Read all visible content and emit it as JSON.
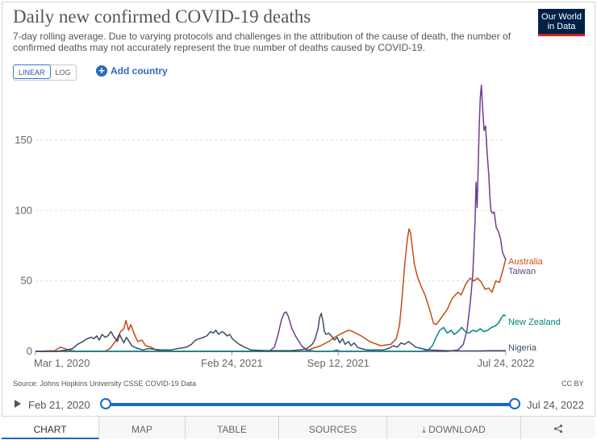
{
  "header": {
    "title": "Daily new confirmed COVID-19 deaths",
    "subtitle": "7-day rolling average. Due to varying protocols and challenges in the attribution of the cause of death, the number of confirmed deaths may not accurately represent the true number of deaths caused by COVID-19.",
    "logo_line1": "Our World",
    "logo_line2": "in Data"
  },
  "controls": {
    "linear_label": "LINEAR",
    "log_label": "LOG",
    "add_country_label": "Add country"
  },
  "footer": {
    "source": "Source: Johns Hopkins University CSSE COVID-19 Data",
    "license": "CC BY"
  },
  "timeline": {
    "start_label": "Feb 21, 2020",
    "end_label": "Jul 24, 2022"
  },
  "tabs": [
    "CHART",
    "MAP",
    "TABLE",
    "SOURCES",
    "DOWNLOAD"
  ],
  "icons": {
    "play": "play-icon",
    "share": "share-icon",
    "download": "download-icon",
    "add": "plus-circle-icon"
  },
  "colors": {
    "accent": "#1867d0",
    "grid": "#dddddd",
    "axis_text": "#666666"
  },
  "chart_data": {
    "type": "line",
    "x_scale": "time",
    "x_ticks": [
      "Mar 1, 2020",
      "Feb 24, 2021",
      "Sep 12, 2021",
      "Jul 24, 2022"
    ],
    "y_ticks": [
      0,
      50,
      100,
      150
    ],
    "ylim": [
      0,
      190
    ],
    "xlim": [
      "2020-02-21",
      "2022-07-24"
    ],
    "grid": true,
    "legend": "line-end labels",
    "series": [
      {
        "name": "Australia",
        "color": "#c64b14",
        "points": [
          [
            "2020-02-21",
            0
          ],
          [
            "2020-03-28",
            0.5
          ],
          [
            "2020-04-08",
            3
          ],
          [
            "2020-04-20",
            1.5
          ],
          [
            "2020-05-05",
            0
          ],
          [
            "2020-06-30",
            0
          ],
          [
            "2020-07-10",
            2
          ],
          [
            "2020-07-22",
            8
          ],
          [
            "2020-07-30",
            14
          ],
          [
            "2020-08-05",
            16
          ],
          [
            "2020-08-09",
            22
          ],
          [
            "2020-08-14",
            15
          ],
          [
            "2020-08-18",
            19
          ],
          [
            "2020-08-24",
            13
          ],
          [
            "2020-08-31",
            7
          ],
          [
            "2020-09-08",
            8
          ],
          [
            "2020-09-15",
            4
          ],
          [
            "2020-09-25",
            3
          ],
          [
            "2020-10-05",
            1
          ],
          [
            "2020-10-20",
            0
          ],
          [
            "2021-07-01",
            0
          ],
          [
            "2021-07-15",
            0.5
          ],
          [
            "2021-07-25",
            2
          ],
          [
            "2021-08-10",
            4
          ],
          [
            "2021-08-25",
            7
          ],
          [
            "2021-09-05",
            10
          ],
          [
            "2021-09-20",
            13
          ],
          [
            "2021-10-01",
            15
          ],
          [
            "2021-10-10",
            14
          ],
          [
            "2021-10-25",
            11
          ],
          [
            "2021-11-10",
            7
          ],
          [
            "2021-12-01",
            4
          ],
          [
            "2021-12-20",
            5
          ],
          [
            "2021-12-30",
            9
          ],
          [
            "2022-01-05",
            18
          ],
          [
            "2022-01-10",
            38
          ],
          [
            "2022-01-15",
            62
          ],
          [
            "2022-01-20",
            80
          ],
          [
            "2022-01-23",
            87
          ],
          [
            "2022-01-26",
            84
          ],
          [
            "2022-02-02",
            62
          ],
          [
            "2022-02-08",
            53
          ],
          [
            "2022-02-15",
            46
          ],
          [
            "2022-02-22",
            40
          ],
          [
            "2022-03-01",
            32
          ],
          [
            "2022-03-10",
            20
          ],
          [
            "2022-03-15",
            19
          ],
          [
            "2022-03-25",
            24
          ],
          [
            "2022-04-05",
            30
          ],
          [
            "2022-04-15",
            38
          ],
          [
            "2022-04-25",
            42
          ],
          [
            "2022-05-01",
            40
          ],
          [
            "2022-05-10",
            48
          ],
          [
            "2022-05-18",
            52
          ],
          [
            "2022-05-25",
            50
          ],
          [
            "2022-06-01",
            52
          ],
          [
            "2022-06-08",
            49
          ],
          [
            "2022-06-15",
            44
          ],
          [
            "2022-06-22",
            45
          ],
          [
            "2022-06-28",
            42
          ],
          [
            "2022-07-05",
            50
          ],
          [
            "2022-07-12",
            49
          ],
          [
            "2022-07-20",
            60
          ],
          [
            "2022-07-24",
            66
          ]
        ]
      },
      {
        "name": "Taiwan",
        "color": "#6d3e91",
        "points": [
          [
            "2020-02-21",
            0
          ],
          [
            "2021-05-05",
            0
          ],
          [
            "2021-05-15",
            3
          ],
          [
            "2021-05-22",
            12
          ],
          [
            "2021-05-28",
            22
          ],
          [
            "2021-06-02",
            27
          ],
          [
            "2021-06-06",
            28
          ],
          [
            "2021-06-10",
            25
          ],
          [
            "2021-06-17",
            16
          ],
          [
            "2021-06-25",
            10
          ],
          [
            "2021-07-05",
            4
          ],
          [
            "2021-07-15",
            1
          ],
          [
            "2021-08-01",
            0
          ],
          [
            "2022-04-05",
            0
          ],
          [
            "2022-04-25",
            1
          ],
          [
            "2022-05-05",
            5
          ],
          [
            "2022-05-12",
            15
          ],
          [
            "2022-05-18",
            34
          ],
          [
            "2022-05-23",
            55
          ],
          [
            "2022-05-27",
            90
          ],
          [
            "2022-05-29",
            120
          ],
          [
            "2022-05-31",
            102
          ],
          [
            "2022-06-02",
            130
          ],
          [
            "2022-06-04",
            160
          ],
          [
            "2022-06-06",
            180
          ],
          [
            "2022-06-08",
            189
          ],
          [
            "2022-06-10",
            175
          ],
          [
            "2022-06-13",
            157
          ],
          [
            "2022-06-16",
            160
          ],
          [
            "2022-06-19",
            140
          ],
          [
            "2022-06-22",
            125
          ],
          [
            "2022-06-24",
            110
          ],
          [
            "2022-06-26",
            100
          ],
          [
            "2022-06-29",
            98
          ],
          [
            "2022-07-02",
            99
          ],
          [
            "2022-07-06",
            88
          ],
          [
            "2022-07-10",
            85
          ],
          [
            "2022-07-14",
            80
          ],
          [
            "2022-07-18",
            70
          ],
          [
            "2022-07-24",
            65
          ]
        ]
      },
      {
        "name": "New Zealand",
        "color": "#00847e",
        "points": [
          [
            "2020-02-21",
            0
          ],
          [
            "2021-09-01",
            0
          ],
          [
            "2021-09-05",
            0.5
          ],
          [
            "2021-09-10",
            1
          ],
          [
            "2021-09-15",
            0
          ],
          [
            "2022-02-15",
            0
          ],
          [
            "2022-02-28",
            1
          ],
          [
            "2022-03-08",
            4
          ],
          [
            "2022-03-15",
            10
          ],
          [
            "2022-03-22",
            15
          ],
          [
            "2022-03-29",
            17
          ],
          [
            "2022-04-05",
            13
          ],
          [
            "2022-04-12",
            15
          ],
          [
            "2022-04-18",
            12
          ],
          [
            "2022-04-25",
            14
          ],
          [
            "2022-05-02",
            17
          ],
          [
            "2022-05-09",
            14
          ],
          [
            "2022-05-16",
            13
          ],
          [
            "2022-05-23",
            15
          ],
          [
            "2022-05-30",
            14
          ],
          [
            "2022-06-06",
            16
          ],
          [
            "2022-06-13",
            14
          ],
          [
            "2022-06-20",
            15
          ],
          [
            "2022-06-27",
            17
          ],
          [
            "2022-07-04",
            18
          ],
          [
            "2022-07-10",
            20
          ],
          [
            "2022-07-16",
            24
          ],
          [
            "2022-07-20",
            26
          ],
          [
            "2022-07-24",
            25
          ]
        ]
      },
      {
        "name": "Nigeria",
        "color": "#3c4e66",
        "points": [
          [
            "2020-02-21",
            0
          ],
          [
            "2020-04-01",
            0
          ],
          [
            "2020-04-20",
            1
          ],
          [
            "2020-05-01",
            2
          ],
          [
            "2020-05-10",
            5
          ],
          [
            "2020-05-20",
            7
          ],
          [
            "2020-05-28",
            9
          ],
          [
            "2020-06-05",
            10
          ],
          [
            "2020-06-10",
            9
          ],
          [
            "2020-06-15",
            11
          ],
          [
            "2020-06-20",
            8
          ],
          [
            "2020-06-25",
            12
          ],
          [
            "2020-07-01",
            10
          ],
          [
            "2020-07-06",
            11
          ],
          [
            "2020-07-12",
            14
          ],
          [
            "2020-07-18",
            10
          ],
          [
            "2020-07-24",
            7
          ],
          [
            "2020-07-28",
            12
          ],
          [
            "2020-08-01",
            9
          ],
          [
            "2020-08-05",
            6
          ],
          [
            "2020-08-10",
            10
          ],
          [
            "2020-08-15",
            7
          ],
          [
            "2020-08-20",
            4
          ],
          [
            "2020-08-25",
            3
          ],
          [
            "2020-09-01",
            2
          ],
          [
            "2020-09-10",
            1
          ],
          [
            "2020-09-20",
            2
          ],
          [
            "2020-10-01",
            1.5
          ],
          [
            "2020-10-15",
            1
          ],
          [
            "2020-11-01",
            1
          ],
          [
            "2020-11-15",
            2
          ],
          [
            "2020-12-01",
            3
          ],
          [
            "2020-12-10",
            5
          ],
          [
            "2020-12-18",
            8
          ],
          [
            "2020-12-25",
            9
          ],
          [
            "2021-01-02",
            10
          ],
          [
            "2021-01-08",
            11
          ],
          [
            "2021-01-15",
            14
          ],
          [
            "2021-01-20",
            13
          ],
          [
            "2021-01-25",
            15
          ],
          [
            "2021-01-30",
            12
          ],
          [
            "2021-02-05",
            14
          ],
          [
            "2021-02-10",
            13
          ],
          [
            "2021-02-15",
            11
          ],
          [
            "2021-02-20",
            12
          ],
          [
            "2021-02-25",
            9
          ],
          [
            "2021-03-03",
            7
          ],
          [
            "2021-03-10",
            5
          ],
          [
            "2021-03-20",
            3
          ],
          [
            "2021-04-01",
            1
          ],
          [
            "2021-05-01",
            0.5
          ],
          [
            "2021-06-15",
            0.5
          ],
          [
            "2021-07-01",
            1
          ],
          [
            "2021-07-15",
            2
          ],
          [
            "2021-07-25",
            5
          ],
          [
            "2021-07-30",
            8
          ],
          [
            "2021-08-05",
            16
          ],
          [
            "2021-08-08",
            24
          ],
          [
            "2021-08-11",
            27
          ],
          [
            "2021-08-14",
            22
          ],
          [
            "2021-08-17",
            14
          ],
          [
            "2021-08-20",
            12
          ],
          [
            "2021-08-25",
            13
          ],
          [
            "2021-08-30",
            11
          ],
          [
            "2021-09-05",
            8
          ],
          [
            "2021-09-10",
            10
          ],
          [
            "2021-09-15",
            6
          ],
          [
            "2021-09-20",
            9
          ],
          [
            "2021-09-25",
            5
          ],
          [
            "2021-10-01",
            7
          ],
          [
            "2021-10-06",
            4
          ],
          [
            "2021-10-12",
            6
          ],
          [
            "2021-10-18",
            3
          ],
          [
            "2021-10-25",
            2
          ],
          [
            "2021-11-05",
            1
          ],
          [
            "2021-11-20",
            1
          ],
          [
            "2021-12-05",
            1
          ],
          [
            "2021-12-15",
            2
          ],
          [
            "2021-12-25",
            4
          ],
          [
            "2022-01-01",
            3
          ],
          [
            "2022-01-08",
            6
          ],
          [
            "2022-01-15",
            5
          ],
          [
            "2022-01-22",
            7
          ],
          [
            "2022-01-29",
            5
          ],
          [
            "2022-02-05",
            3
          ],
          [
            "2022-02-15",
            2
          ],
          [
            "2022-03-01",
            1
          ],
          [
            "2022-04-01",
            0.5
          ],
          [
            "2022-05-01",
            0.3
          ],
          [
            "2022-06-01",
            0.3
          ],
          [
            "2022-07-01",
            0.5
          ],
          [
            "2022-07-24",
            0.5
          ]
        ]
      }
    ]
  }
}
